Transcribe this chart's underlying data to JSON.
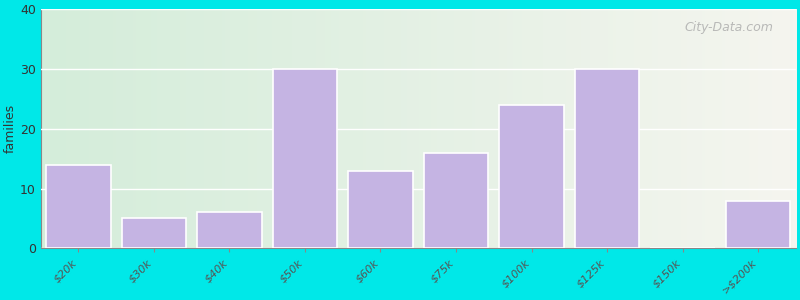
{
  "subtitle_color": "#008b8b",
  "categories": [
    "$20k",
    "$30k",
    "$40k",
    "$50k",
    "$60k",
    "$75k",
    "$100k",
    "$125k",
    "$150k",
    ">$200k"
  ],
  "values": [
    14,
    5,
    6,
    30,
    13,
    16,
    24,
    30,
    0,
    8
  ],
  "bar_color": "#c5b4e3",
  "bar_edge_color": "#c5b4e3",
  "ylabel": "families",
  "ylim": [
    0,
    40
  ],
  "yticks": [
    0,
    10,
    20,
    30,
    40
  ],
  "background_color": "#00e8e8",
  "plot_bg_left": "#d4edda",
  "plot_bg_right": "#f5f5ef",
  "title_fontsize": 15,
  "subtitle_fontsize": 11,
  "watermark_text": "City-Data.com",
  "watermark_color": "#aaaaaa"
}
